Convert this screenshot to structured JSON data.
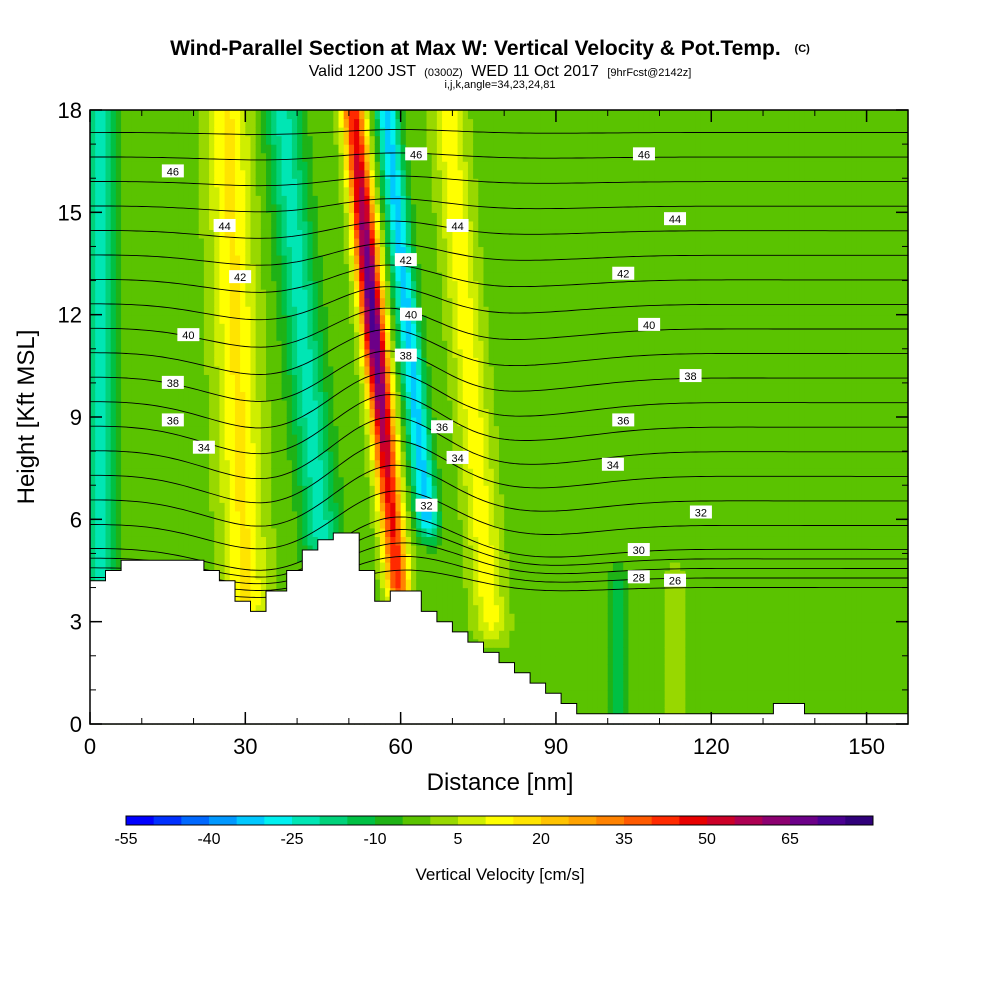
{
  "chart_data": {
    "type": "heatmap",
    "title": "Wind-Parallel Section at Max W: Vertical Velocity & Pot.Temp.",
    "title_suffix": "(C)",
    "subtitle_parts": [
      "Valid 1200 JST",
      "(0300Z)",
      "WED 11 Oct 2017",
      "[9hrFcst@2142z]"
    ],
    "subtitle2": "i,j,k,angle=34,23,24,81",
    "xlabel": "Distance [nm]",
    "ylabel": "Height [Kft MSL]",
    "xlim": [
      0,
      158
    ],
    "ylim": [
      0,
      18
    ],
    "x_ticks": [
      0,
      30,
      60,
      90,
      120,
      150
    ],
    "y_ticks": [
      0,
      3,
      6,
      9,
      12,
      15,
      18
    ],
    "grid": false,
    "colorbar": {
      "title": "Vertical Velocity [cm/s]",
      "tick_labels": [
        "-55",
        "-40",
        "-25",
        "-10",
        "5",
        "20",
        "35",
        "50",
        "65"
      ],
      "tick_values": [
        -55,
        -40,
        -25,
        -10,
        5,
        20,
        35,
        50,
        65
      ],
      "min": -55,
      "max": 80,
      "step": 5,
      "colors": [
        "#0000ff",
        "#0030ff",
        "#0068ff",
        "#0098ff",
        "#00c8ff",
        "#00f0f0",
        "#00e6b4",
        "#00d27a",
        "#00c044",
        "#1fb216",
        "#5ac300",
        "#98d800",
        "#cfee00",
        "#ffff00",
        "#ffe400",
        "#ffc300",
        "#ffa300",
        "#ff8200",
        "#ff5a00",
        "#ff2a00",
        "#e80000",
        "#cc0028",
        "#ad0052",
        "#8c0070",
        "#6c0088",
        "#4a0090",
        "#30007a"
      ]
    },
    "vertical_velocity_field": {
      "background_cm_s": -2,
      "features": [
        {
          "x_center_at_0kft": 2,
          "tilt_nm_per_kft": 0.0,
          "half_width_nm": 2.5,
          "peak_cm_s": -22,
          "z_range_kft": [
            4.5,
            18
          ]
        },
        {
          "x_center_at_0kft": 31,
          "tilt_nm_per_kft": -0.25,
          "half_width_nm": 4,
          "peak_cm_s": 18,
          "z_range_kft": [
            3.5,
            18
          ]
        },
        {
          "x_center_at_0kft": 48,
          "tilt_nm_per_kft": -0.6,
          "half_width_nm": 3.5,
          "peak_cm_s": -20,
          "z_range_kft": [
            5,
            18
          ]
        },
        {
          "x_center_at_0kft": 62,
          "tilt_nm_per_kft": -0.62,
          "half_width_nm": 2.2,
          "peak_cm_s": 75,
          "z_range_kft": [
            4,
            18
          ]
        },
        {
          "x_center_at_0kft": 69,
          "tilt_nm_per_kft": -0.65,
          "half_width_nm": 2.2,
          "peak_cm_s": -30,
          "z_range_kft": [
            6,
            18
          ]
        },
        {
          "x_center_at_0kft": 79,
          "tilt_nm_per_kft": -0.55,
          "half_width_nm": 3,
          "peak_cm_s": 15,
          "z_range_kft": [
            3,
            18
          ]
        },
        {
          "x_center_at_0kft": 102,
          "tilt_nm_per_kft": 0.0,
          "half_width_nm": 2,
          "peak_cm_s": -12,
          "z_range_kft": [
            0,
            4
          ]
        },
        {
          "x_center_at_0kft": 113,
          "tilt_nm_per_kft": 0.0,
          "half_width_nm": 2,
          "peak_cm_s": 6,
          "z_range_kft": [
            0,
            4
          ]
        }
      ]
    },
    "potential_temperature_contours": {
      "units": "C",
      "levels": [
        26,
        27,
        28,
        29,
        30,
        31,
        32,
        33,
        34,
        35,
        36,
        37,
        38,
        39,
        40,
        41,
        42,
        43,
        44,
        45,
        46,
        47
      ],
      "labels": [
        {
          "text": "46",
          "x": 16,
          "z": 16.2
        },
        {
          "text": "46",
          "x": 63,
          "z": 16.7
        },
        {
          "text": "46",
          "x": 107,
          "z": 16.7
        },
        {
          "text": "44",
          "x": 26,
          "z": 14.6
        },
        {
          "text": "44",
          "x": 71,
          "z": 14.6
        },
        {
          "text": "44",
          "x": 113,
          "z": 14.8
        },
        {
          "text": "42",
          "x": 29,
          "z": 13.1
        },
        {
          "text": "42",
          "x": 61,
          "z": 13.6
        },
        {
          "text": "42",
          "x": 103,
          "z": 13.2
        },
        {
          "text": "40",
          "x": 19,
          "z": 11.4
        },
        {
          "text": "40",
          "x": 62,
          "z": 12.0
        },
        {
          "text": "40",
          "x": 108,
          "z": 11.7
        },
        {
          "text": "38",
          "x": 16,
          "z": 10.0
        },
        {
          "text": "38",
          "x": 61,
          "z": 10.8
        },
        {
          "text": "38",
          "x": 116,
          "z": 10.2
        },
        {
          "text": "36",
          "x": 16,
          "z": 8.9
        },
        {
          "text": "36",
          "x": 68,
          "z": 8.7
        },
        {
          "text": "36",
          "x": 103,
          "z": 8.9
        },
        {
          "text": "34",
          "x": 22,
          "z": 8.1
        },
        {
          "text": "34",
          "x": 71,
          "z": 7.8
        },
        {
          "text": "34",
          "x": 101,
          "z": 7.6
        },
        {
          "text": "32",
          "x": 65,
          "z": 6.4
        },
        {
          "text": "32",
          "x": 118,
          "z": 6.2
        },
        {
          "text": "30",
          "x": 106,
          "z": 5.1
        },
        {
          "text": "28",
          "x": 106,
          "z": 4.3
        },
        {
          "text": "26",
          "x": 113,
          "z": 4.2
        }
      ]
    },
    "terrain_kft": [
      [
        0,
        4.2
      ],
      [
        3,
        4.2
      ],
      [
        3,
        4.5
      ],
      [
        6,
        4.5
      ],
      [
        6,
        4.8
      ],
      [
        22,
        4.8
      ],
      [
        22,
        4.5
      ],
      [
        25,
        4.5
      ],
      [
        25,
        4.2
      ],
      [
        28,
        4.2
      ],
      [
        28,
        3.6
      ],
      [
        31,
        3.6
      ],
      [
        31,
        3.3
      ],
      [
        34,
        3.3
      ],
      [
        34,
        3.9
      ],
      [
        38,
        3.9
      ],
      [
        38,
        4.5
      ],
      [
        41,
        4.5
      ],
      [
        41,
        5.1
      ],
      [
        44,
        5.1
      ],
      [
        44,
        5.4
      ],
      [
        47,
        5.4
      ],
      [
        47,
        5.6
      ],
      [
        52,
        5.6
      ],
      [
        52,
        4.5
      ],
      [
        55,
        4.5
      ],
      [
        55,
        3.6
      ],
      [
        58,
        3.6
      ],
      [
        58,
        3.9
      ],
      [
        64,
        3.9
      ],
      [
        64,
        3.3
      ],
      [
        67,
        3.3
      ],
      [
        67,
        3.0
      ],
      [
        70,
        3.0
      ],
      [
        70,
        2.7
      ],
      [
        73,
        2.7
      ],
      [
        73,
        2.4
      ],
      [
        76,
        2.4
      ],
      [
        76,
        2.1
      ],
      [
        79,
        2.1
      ],
      [
        79,
        1.8
      ],
      [
        82,
        1.8
      ],
      [
        82,
        1.5
      ],
      [
        85,
        1.5
      ],
      [
        85,
        1.2
      ],
      [
        88,
        1.2
      ],
      [
        88,
        0.9
      ],
      [
        91,
        0.9
      ],
      [
        91,
        0.6
      ],
      [
        94,
        0.6
      ],
      [
        94,
        0.3
      ],
      [
        132,
        0.3
      ],
      [
        132,
        0.6
      ],
      [
        138,
        0.6
      ],
      [
        138,
        0.3
      ],
      [
        158,
        0.3
      ],
      [
        158,
        0
      ]
    ]
  }
}
